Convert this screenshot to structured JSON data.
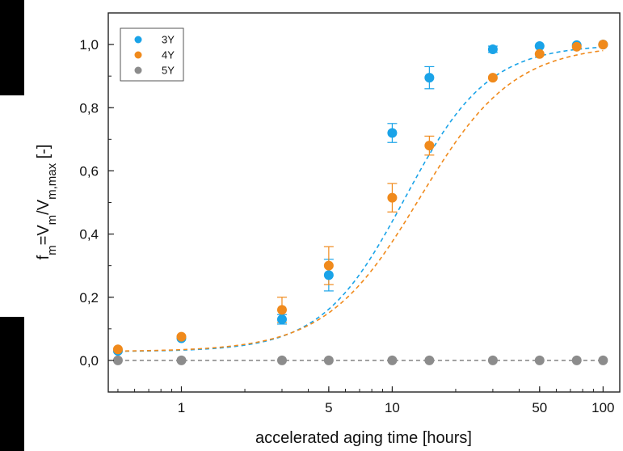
{
  "chart_data": {
    "type": "scatter",
    "title": "",
    "xlabel": "accelerated aging time [hours]",
    "ylabel_parts": [
      "f",
      "m",
      "=V",
      "m",
      "/V",
      "m,max",
      " [-]"
    ],
    "xscale": "log",
    "xlim": [
      0.45,
      120
    ],
    "ylim": [
      -0.1,
      1.1
    ],
    "grid": false,
    "legend_position": "top-left",
    "x_ticks": [
      {
        "value": 1,
        "label": "1"
      },
      {
        "value": 5,
        "label": "5"
      },
      {
        "value": 10,
        "label": "10"
      },
      {
        "value": 50,
        "label": "50"
      },
      {
        "value": 100,
        "label": "100"
      }
    ],
    "y_ticks": [
      {
        "value": 0.0,
        "label": "0,0"
      },
      {
        "value": 0.2,
        "label": "0,2"
      },
      {
        "value": 0.4,
        "label": "0,4"
      },
      {
        "value": 0.6,
        "label": "0,6"
      },
      {
        "value": 0.8,
        "label": "0,8"
      },
      {
        "value": 1.0,
        "label": "1,0"
      }
    ],
    "series": [
      {
        "name": "3Y",
        "color": "#1aa3e8",
        "x": [
          0.5,
          1,
          3,
          5,
          10,
          15,
          30,
          50,
          75,
          100
        ],
        "y": [
          0.03,
          0.07,
          0.13,
          0.27,
          0.72,
          0.895,
          0.985,
          0.995,
          0.998,
          1.0
        ],
        "err": [
          0.0,
          0.0,
          0.015,
          0.05,
          0.03,
          0.035,
          0.01,
          0.0,
          0.0,
          0.0
        ],
        "fit": {
          "style": "dashed",
          "ec50": 11.5,
          "hill": 2.2
        }
      },
      {
        "name": "4Y",
        "color": "#f08a1c",
        "x": [
          0.5,
          1,
          3,
          5,
          10,
          15,
          30,
          50,
          75,
          100
        ],
        "y": [
          0.035,
          0.075,
          0.16,
          0.3,
          0.515,
          0.68,
          0.895,
          0.97,
          0.993,
          1.0
        ],
        "err": [
          0.0,
          0.0,
          0.04,
          0.06,
          0.045,
          0.03,
          0.0,
          0.0,
          0.0,
          0.0
        ],
        "fit": {
          "style": "dashed",
          "ec50": 13.5,
          "hill": 1.95
        }
      },
      {
        "name": "5Y",
        "color": "#8c8c8c",
        "x": [
          0.5,
          1,
          3,
          5,
          10,
          15,
          30,
          50,
          75,
          100
        ],
        "y": [
          0,
          0,
          0,
          0,
          0,
          0,
          0,
          0,
          0,
          0
        ],
        "err": [
          0,
          0,
          0,
          0,
          0,
          0,
          0,
          0,
          0,
          0
        ],
        "fit": {
          "style": "dashed",
          "constant": 0.0
        }
      }
    ]
  }
}
